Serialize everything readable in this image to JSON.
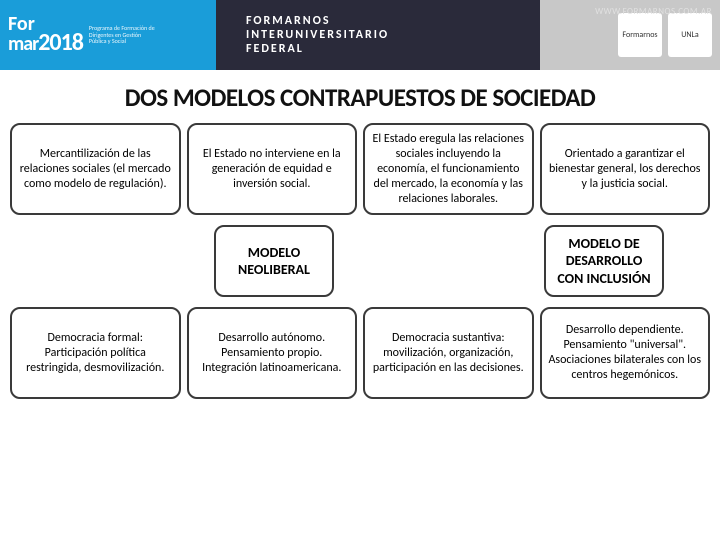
{
  "header": {
    "logo_top": "For",
    "logo_mar": "mar",
    "logo_ano": "2018",
    "logo_slogan": "Programa de Formación de Dirigentes en Gestión Pública y Social",
    "mid_line1": "FORMARNOS",
    "mid_line2": "INTERUNIVERSITARIO",
    "mid_line3": "FEDERAL",
    "url": "WWW.FORMARNOS.COM.AR",
    "badge1": "Formarnos",
    "badge2": "UNLa"
  },
  "title": "DOS MODELOS CONTRAPUESTOS DE SOCIEDAD",
  "row1": {
    "c1": "Mercantilización de las relaciones sociales (el mercado como modelo de regulación).",
    "c2": "El Estado no interviene en la generación de equidad e inversión social.",
    "c3": "El Estado eregula las relaciones sociales incluyendo la economía,  el funcionamiento del mercado, la economía y las relaciones laborales.",
    "c4": "Orientado a garantizar el bienestar general, los derechos y la justicia social."
  },
  "labels": {
    "left": "MODELO NEOLIBERAL",
    "right": "MODELO DE DESARROLLO CON INCLUSIÓN"
  },
  "row3": {
    "c1": "Democracia formal: Participación política restringida, desmovilización.",
    "c2_l1": "Desarrollo autónomo.",
    "c2_l2": "Pensamiento propio.",
    "c2_l3": "Integración latinoamericana.",
    "c3": "Democracia sustantiva: movilización, organización, participación en las decisiones.",
    "c4_l1": "Desarrollo dependiente.",
    "c4_l2": "Pensamiento \"universal\".",
    "c4_l3": "Asociaciones bilaterales con los centros hegemónicos."
  },
  "colors": {
    "cyan": "#1a9dd9",
    "dark": "#2a2a3a",
    "border": "#3a3a3a"
  }
}
